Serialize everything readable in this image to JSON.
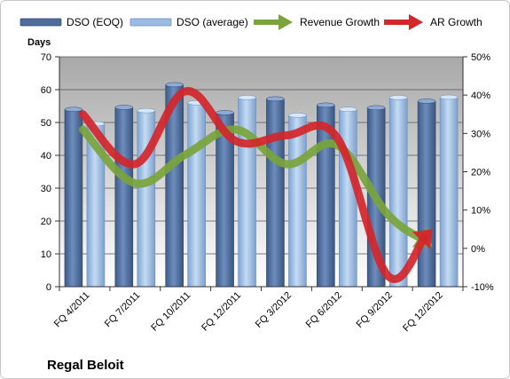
{
  "chart_data": {
    "type": "bar",
    "title": "Regal Beloit",
    "ylabel": "Days",
    "y2label": "",
    "ylim": [
      0,
      70
    ],
    "y2lim": [
      -10,
      50
    ],
    "yticks": [
      "0",
      "10",
      "20",
      "30",
      "40",
      "50",
      "60",
      "70"
    ],
    "y2ticks": [
      "-10%",
      "0%",
      "10%",
      "20%",
      "30%",
      "40%",
      "50%"
    ],
    "grid": true,
    "legend_position": "top",
    "categories": [
      "FQ 4/2011",
      "FQ 7/2011",
      "FQ 10/2011",
      "FQ 12/2011",
      "FQ 3/2012",
      "FQ 6/2012",
      "FQ 9/2012",
      "FQ 12/2012"
    ],
    "series": [
      {
        "name": "DSO (EOQ)",
        "kind": "bar",
        "axis": "left",
        "color": "#4f6d9b",
        "values": [
          54,
          54.6,
          61.5,
          53,
          57.2,
          55.3,
          54.5,
          56.5
        ]
      },
      {
        "name": "DSO (average)",
        "kind": "bar",
        "axis": "left",
        "color": "#9bbbe2",
        "values": [
          49.6,
          53.6,
          56,
          57.6,
          52.2,
          54,
          57.6,
          57.7
        ]
      },
      {
        "name": "Revenue Growth",
        "kind": "arrow-line",
        "axis": "right",
        "color": "#7aa43c",
        "values": [
          31,
          17,
          24.5,
          31,
          22,
          27,
          9,
          0.5
        ]
      },
      {
        "name": "AR Growth",
        "kind": "arrow-line",
        "axis": "right",
        "color": "#d3262b",
        "values": [
          35,
          22,
          41,
          28,
          29.5,
          29,
          -7,
          5
        ]
      }
    ]
  }
}
